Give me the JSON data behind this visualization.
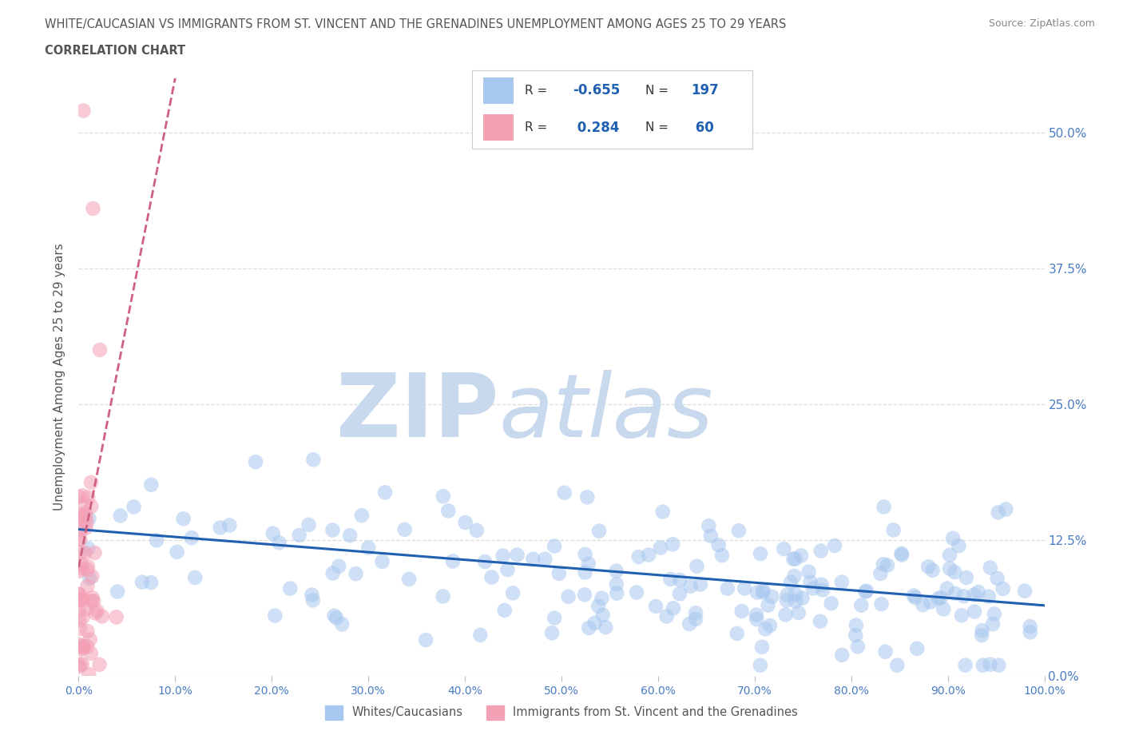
{
  "title_line1": "WHITE/CAUCASIAN VS IMMIGRANTS FROM ST. VINCENT AND THE GRENADINES UNEMPLOYMENT AMONG AGES 25 TO 29 YEARS",
  "title_line2": "CORRELATION CHART",
  "source_text": "Source: ZipAtlas.com",
  "ylabel": "Unemployment Among Ages 25 to 29 years",
  "xlim": [
    0.0,
    1.0
  ],
  "ylim": [
    0.0,
    0.55
  ],
  "yticks": [
    0.0,
    0.125,
    0.25,
    0.375,
    0.5
  ],
  "ytick_labels": [
    "0.0%",
    "12.5%",
    "25.0%",
    "37.5%",
    "50.0%"
  ],
  "xticks": [
    0.0,
    0.1,
    0.2,
    0.3,
    0.4,
    0.5,
    0.6,
    0.7,
    0.8,
    0.9,
    1.0
  ],
  "xtick_labels": [
    "0.0%",
    "10.0%",
    "20.0%",
    "30.0%",
    "40.0%",
    "50.0%",
    "60.0%",
    "70.0%",
    "80.0%",
    "90.0%",
    "100.0%"
  ],
  "blue_color": "#A8C8F0",
  "pink_color": "#F4A0B5",
  "blue_line_color": "#2060B0",
  "pink_line_color": "#D06080",
  "blue_R": -0.655,
  "blue_N": 197,
  "pink_R": 0.284,
  "pink_N": 60,
  "blue_legend": "Whites/Caucasians",
  "pink_legend": "Immigrants from St. Vincent and the Grenadines",
  "watermark_zip": "ZIP",
  "watermark_atlas": "atlas",
  "watermark_color": "#C8D8ED",
  "background_color": "#FFFFFF",
  "grid_color": "#DDDDDD",
  "title_color": "#555555",
  "axis_label_color": "#555555",
  "tick_label_color": "#4A7CC4",
  "source_color": "#888888",
  "legend_R_color": "#333333",
  "legend_N_color": "#2060B0"
}
